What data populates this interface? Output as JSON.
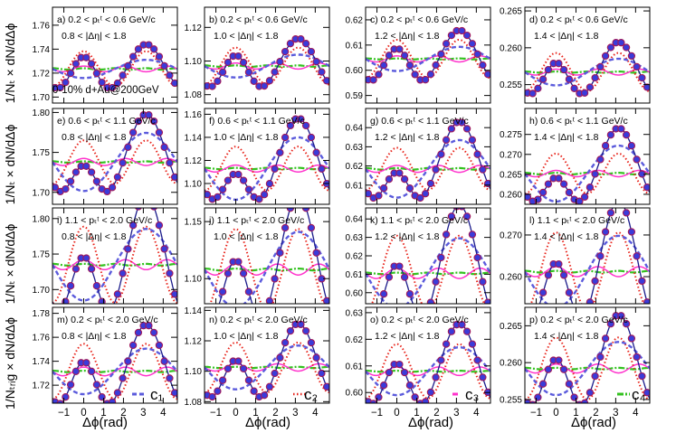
{
  "figure": {
    "xlabel": "Δϕ(rad)",
    "row_ylabels": [
      "1/Nₜ × dN/dΔϕ",
      "1/Nₜ × dN/dΔϕ",
      "1/Nₜ × dN/dΔϕ",
      "1/Nₜᵣᵢg × dN/dΔϕ"
    ],
    "system_label": "0-10% d+Au@200GeV",
    "legend": [
      {
        "key": "c1",
        "label": "c₁",
        "color": "#5b5bdc",
        "style": "dashed"
      },
      {
        "key": "c2",
        "label": "c₂",
        "color": "#e8251c",
        "style": "dotted"
      },
      {
        "key": "c3",
        "label": "c₃",
        "color": "#ff33cc",
        "style": "solid"
      },
      {
        "key": "c4",
        "label": "c₄",
        "color": "#33c21f",
        "style": "dashdot"
      }
    ],
    "colors": {
      "marker_fill": "#3b3bd9",
      "marker_edge": "#a0195a",
      "fit": "#1a1a8a",
      "c1": "#5b5bdc",
      "c2": "#e8251c",
      "c3": "#ff33cc",
      "c4": "#33c21f"
    }
  },
  "chart_data": [
    {
      "id": "a",
      "type": "line",
      "pt_label": "a) 0.2 < pₜᵗ < 0.6 GeV/c",
      "eta_label": "0.8 < |Δη| < 1.8",
      "ylim": [
        1.695,
        1.775
      ],
      "yticks": [
        1.7,
        1.72,
        1.74,
        1.76
      ],
      "xlim": [
        -1.5708,
        4.7124
      ],
      "xticks": [
        -1,
        0,
        1,
        2,
        3,
        4
      ],
      "c0": 1.7235,
      "c1": -0.0038,
      "c2": 0.0074,
      "c3": 0.0012,
      "c4": 0.0003
    },
    {
      "id": "b",
      "type": "line",
      "pt_label": "b) 0.2 < pₜᵗ < 0.6 GeV/c",
      "eta_label": "1.0 < |Δη| < 1.8",
      "ylim": [
        1.075,
        1.132
      ],
      "yticks": [
        1.08,
        1.1,
        1.12
      ],
      "xlim": [
        -1.5708,
        4.7124
      ],
      "xticks": [
        -1,
        0,
        1,
        2,
        3,
        4
      ],
      "c0": 1.097,
      "c1": -0.0034,
      "c2": 0.0055,
      "c3": 0.0009,
      "c4": 0.0002
    },
    {
      "id": "c",
      "type": "line",
      "pt_label": "c) 0.2 < pₜᵗ < 0.6 GeV/c",
      "eta_label": "1.2 < |Δη| < 1.8",
      "ylim": [
        0.587,
        0.625
      ],
      "yticks": [
        0.59,
        0.6,
        0.61,
        0.62
      ],
      "xlim": [
        -1.5708,
        4.7124
      ],
      "xticks": [
        -1,
        0,
        1,
        2,
        3,
        4
      ],
      "c0": 0.6045,
      "c1": -0.0024,
      "c2": 0.0038,
      "c3": 0.0006,
      "c4": 0.0001
    },
    {
      "id": "d",
      "type": "line",
      "pt_label": "d) 0.2 < pₜᵗ < 0.6 GeV/c",
      "eta_label": "1.4 < |Δη| < 1.8",
      "ylim": [
        0.2525,
        0.2655
      ],
      "yticks": [
        0.255,
        0.26,
        0.265
      ],
      "xlim": [
        -1.5708,
        4.7124
      ],
      "xticks": [
        -1,
        0,
        1,
        2,
        3,
        4
      ],
      "c0": 0.2567,
      "c1": -0.0009,
      "c2": 0.0013,
      "c3": 0.0002,
      "c4": 4e-05
    },
    {
      "id": "e",
      "type": "line",
      "pt_label": "e) 0.6 < pₜᵗ < 1.1 GeV/c",
      "eta_label": "0.8 < |Δη| < 1.8",
      "ylim": [
        1.685,
        1.805
      ],
      "yticks": [
        1.7,
        1.75,
        1.8
      ],
      "xlim": [
        -1.5708,
        4.7124
      ],
      "xticks": [
        -1,
        0,
        1,
        2,
        3,
        4
      ],
      "c0": 1.738,
      "c1": -0.0182,
      "c2": 0.0135,
      "c3": 0.0022,
      "c4": 0.0004
    },
    {
      "id": "f",
      "type": "line",
      "pt_label": "f) 0.6 < pₜᵗ < 1.1 GeV/c",
      "eta_label": "1.0 < |Δη| < 1.8",
      "ylim": [
        1.082,
        1.165
      ],
      "yticks": [
        1.1,
        1.12,
        1.14,
        1.16
      ],
      "xlim": [
        -1.5708,
        4.7124
      ],
      "xticks": [
        -1,
        0,
        1,
        2,
        3,
        4
      ],
      "c0": 1.113,
      "c1": -0.0135,
      "c2": 0.0095,
      "c3": 0.0015,
      "c4": 0.0003
    },
    {
      "id": "g",
      "type": "line",
      "pt_label": "g) 0.6 < pₜᵗ < 1.1 GeV/c",
      "eta_label": "1.2 < |Δη| < 1.8",
      "ylim": [
        0.6,
        0.65
      ],
      "yticks": [
        0.61,
        0.62,
        0.63,
        0.64
      ],
      "xlim": [
        -1.5708,
        4.7124
      ],
      "xticks": [
        -1,
        0,
        1,
        2,
        3,
        4
      ],
      "c0": 0.6185,
      "c1": -0.0075,
      "c2": 0.0055,
      "c3": 0.0009,
      "c4": 0.0002
    },
    {
      "id": "h",
      "type": "line",
      "pt_label": "h) 0.6 < pₜᵗ < 1.1 GeV/c",
      "eta_label": "1.4 < |Δη| < 1.8",
      "ylim": [
        0.2575,
        0.2815
      ],
      "yticks": [
        0.26,
        0.265,
        0.27,
        0.275
      ],
      "xlim": [
        -1.5708,
        4.7124
      ],
      "xticks": [
        -1,
        0,
        1,
        2,
        3,
        4
      ],
      "c0": 0.2652,
      "c1": -0.0035,
      "c2": 0.0025,
      "c3": 0.0004,
      "c4": 0.0001
    },
    {
      "id": "i",
      "type": "line",
      "pt_label": "i) 1.1 < pₜᵗ < 2.0 GeV/c",
      "eta_label": "0.8 < |Δη| < 1.8",
      "ylim": [
        1.68,
        1.815
      ],
      "yticks": [
        1.7,
        1.75,
        1.8
      ],
      "xlim": [
        -1.5708,
        4.7124
      ],
      "xticks": [
        -1,
        0,
        1,
        2,
        3,
        4
      ],
      "c0": 1.735,
      "c1": -0.0252,
      "c2": 0.0268,
      "c3": 0.0035,
      "c4": 0.0006
    },
    {
      "id": "j",
      "type": "line",
      "pt_label": "j) 1.1 < pₜᵗ < 2.0 GeV/c",
      "eta_label": "1.0 < |Δη| < 1.8",
      "ylim": [
        1.078,
        1.162
      ],
      "yticks": [
        1.1,
        1.15
      ],
      "xlim": [
        -1.5708,
        4.7124
      ],
      "xticks": [
        -1,
        0,
        1,
        2,
        3,
        4
      ],
      "c0": 1.108,
      "c1": -0.0165,
      "c2": 0.0178,
      "c3": 0.0024,
      "c4": 0.0004
    },
    {
      "id": "k",
      "type": "line",
      "pt_label": "k) 1.1 < pₜᵗ < 2.0 GeV/c",
      "eta_label": "1.2 < |Δη| < 1.8",
      "ylim": [
        0.594,
        0.646
      ],
      "yticks": [
        0.6,
        0.61,
        0.62,
        0.63,
        0.64
      ],
      "xlim": [
        -1.5708,
        4.7124
      ],
      "xticks": [
        -1,
        0,
        1,
        2,
        3,
        4
      ],
      "c0": 0.6105,
      "c1": -0.0095,
      "c2": 0.0102,
      "c3": 0.0014,
      "c4": 0.0002
    },
    {
      "id": "l",
      "type": "line",
      "pt_label": "l) 1.1 < pₜᵗ < 2.0 GeV/c",
      "eta_label": "1.4 < |Δη| < 1.8",
      "ylim": [
        0.2535,
        0.2765
      ],
      "yticks": [
        0.26,
        0.27
      ],
      "xlim": [
        -1.5708,
        4.7124
      ],
      "xticks": [
        -1,
        0,
        1,
        2,
        3,
        4
      ],
      "c0": 0.2612,
      "c1": -0.0043,
      "c2": 0.0047,
      "c3": 0.0006,
      "c4": 0.0001
    },
    {
      "id": "m",
      "type": "line",
      "pt_label": "m) 0.2 < pₜᵗ < 2.0 GeV/c",
      "eta_label": "0.8 < |Δη| < 1.8",
      "ylim": [
        1.705,
        1.785
      ],
      "yticks": [
        1.72,
        1.74,
        1.76,
        1.78
      ],
      "xlim": [
        -1.5708,
        4.7124
      ],
      "xticks": [
        -1,
        0,
        1,
        2,
        3,
        4
      ],
      "c0": 1.7315,
      "c1": -0.0095,
      "c2": 0.0115,
      "c3": 0.0018,
      "c4": 0.0003
    },
    {
      "id": "n",
      "type": "line",
      "pt_label": "n) 0.2 < pₜᵗ < 2.0 GeV/c",
      "eta_label": "1.0 < |Δη| < 1.8",
      "ylim": [
        1.079,
        1.142
      ],
      "yticks": [
        1.08,
        1.1,
        1.12,
        1.14
      ],
      "xlim": [
        -1.5708,
        4.7124
      ],
      "xticks": [
        -1,
        0,
        1,
        2,
        3,
        4
      ],
      "c0": 1.1025,
      "c1": -0.0072,
      "c2": 0.0082,
      "c3": 0.0012,
      "c4": 0.0002
    },
    {
      "id": "o",
      "type": "line",
      "pt_label": "o) 0.2 < pₜᵗ < 2.0 GeV/c",
      "eta_label": "1.2 < |Δη| < 1.8",
      "ylim": [
        0.596,
        0.632
      ],
      "yticks": [
        0.6,
        0.61,
        0.62,
        0.63
      ],
      "xlim": [
        -1.5708,
        4.7124
      ],
      "xticks": [
        -1,
        0,
        1,
        2,
        3,
        4
      ],
      "c0": 0.608,
      "c1": -0.0045,
      "c2": 0.0051,
      "c3": 0.0008,
      "c4": 0.0001
    },
    {
      "id": "p",
      "type": "line",
      "pt_label": "p) 0.2 < pₜᵗ < 2.0 GeV/c",
      "eta_label": "1.4 < |Δη| < 1.8",
      "ylim": [
        0.2545,
        0.2675
      ],
      "yticks": [
        0.255,
        0.26,
        0.265
      ],
      "xlim": [
        -1.5708,
        4.7124
      ],
      "xticks": [
        -1,
        0,
        1,
        2,
        3,
        4
      ],
      "c0": 0.2592,
      "c1": -0.0018,
      "c2": 0.0021,
      "c3": 0.0003,
      "c4": 5e-05
    }
  ]
}
